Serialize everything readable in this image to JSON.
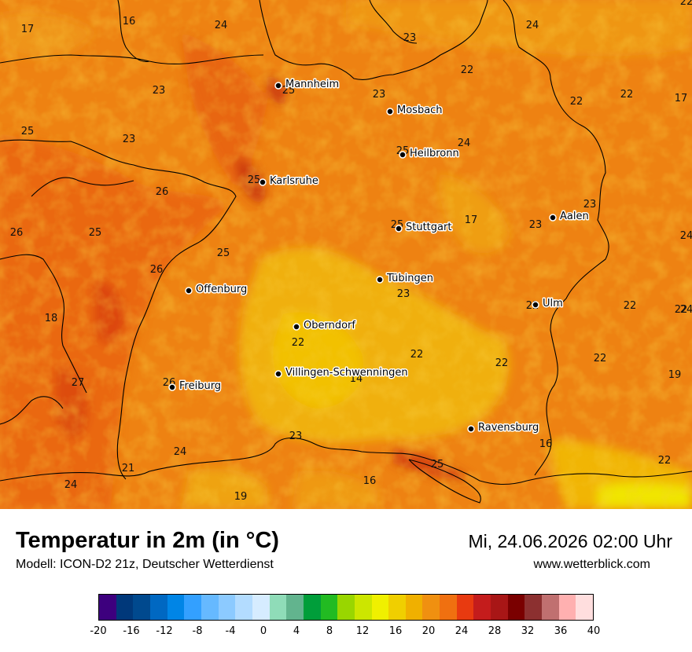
{
  "header": {
    "title": "Temperatur in 2m (in °C)",
    "subtitle": "Modell: ICON-D2 21z, Deutscher Wetterdienst",
    "datetime": "Mi, 24.06.2026 02:00 Uhr",
    "website": "www.wetterblick.com"
  },
  "cities": [
    {
      "name": "Mannheim"
    },
    {
      "name": "Mosbach"
    },
    {
      "name": "Heilbronn"
    },
    {
      "name": "Karlsruhe"
    },
    {
      "name": "Stuttgart"
    },
    {
      "name": "Aalen"
    },
    {
      "name": "Tübingen"
    },
    {
      "name": "Offenburg"
    },
    {
      "name": "Ulm"
    },
    {
      "name": "Oberndorf"
    },
    {
      "name": "Villingen-Schwenningen"
    },
    {
      "name": "Freiburg"
    },
    {
      "name": "Ravensburg"
    }
  ],
  "temperature_labels": [
    "17",
    "16",
    "24",
    "23",
    "24",
    "22",
    "22",
    "17",
    "22",
    "25",
    "23",
    "23",
    "25",
    "23",
    "24",
    "26",
    "25",
    "25",
    "26",
    "25",
    "17",
    "23",
    "23",
    "22",
    "25",
    "26",
    "24",
    "18",
    "23",
    "22",
    "22",
    "22",
    "14",
    "22",
    "22",
    "19",
    "27",
    "26",
    "23",
    "16",
    "24",
    "25",
    "21",
    "16",
    "22",
    "25",
    "24",
    "19",
    "22",
    "24",
    "22"
  ],
  "colorbar": {
    "colors": [
      "#3d007e",
      "#00387a",
      "#00498e",
      "#0068c2",
      "#0085e6",
      "#33a0ff",
      "#66b9ff",
      "#8ccaff",
      "#b3dcff",
      "#d6ecff",
      "#8fdcb8",
      "#62b48e",
      "#009e3a",
      "#22bb22",
      "#99d600",
      "#cce600",
      "#f0f000",
      "#f0cf00",
      "#f0b000",
      "#f09010",
      "#f07010",
      "#e83a10",
      "#c41c1c",
      "#a81616",
      "#7a0000",
      "#8c3030",
      "#c07070",
      "#ffb0b0",
      "#ffdede"
    ],
    "tick_labels": [
      "-20",
      "-16",
      "-12",
      "-8",
      "-4",
      "0",
      "4",
      "8",
      "12",
      "16",
      "20",
      "24",
      "28",
      "32",
      "36",
      "40"
    ],
    "min": -20,
    "max": 40
  }
}
